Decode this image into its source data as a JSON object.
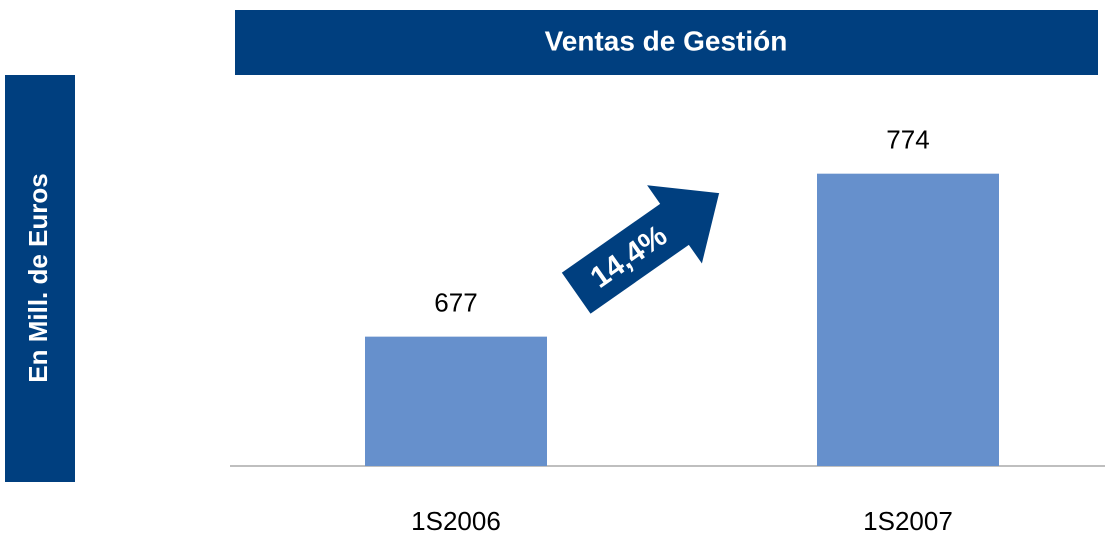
{
  "chart_data": {
    "type": "bar",
    "title": "Ventas de Gestión",
    "y_label": "En Mill. de Euros",
    "categories": [
      "1S2006",
      "1S2007"
    ],
    "values": [
      677,
      774
    ],
    "color": "#6690cc",
    "ylim": [
      600,
      800
    ],
    "annotation": "14,4%"
  }
}
